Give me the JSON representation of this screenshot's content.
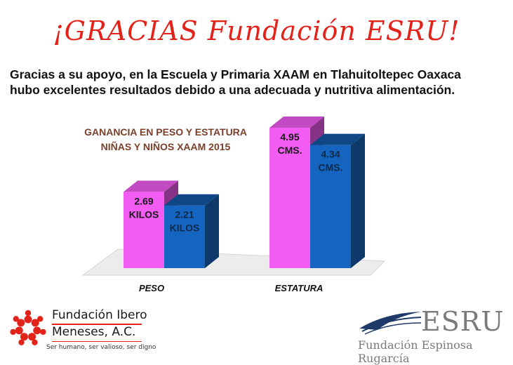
{
  "header": {
    "title": "¡GRACIAS Fundación ESRU!",
    "intro_line1": "Gracias a su apoyo, en la Escuela y Primaria XAAM en Tlahuitoltepec Oaxaca",
    "intro_line2": "hubo excelentes resultados debido a una adecuada y nutritiva alimentación."
  },
  "chart_data": {
    "type": "bar",
    "title_line1": "GANANCIA  EN PESO Y ESTATURA",
    "title_line2": "NIÑAS  Y NIÑOS  XAAM 2015",
    "categories": [
      "PESO",
      "ESTATURA"
    ],
    "series": [
      {
        "values": [
          2.69,
          4.95
        ],
        "labels": [
          "2.69\nKILOS",
          "4.95\nCMS."
        ],
        "color": "#f25cf2"
      },
      {
        "values": [
          2.21,
          4.34
        ],
        "labels": [
          "2.21\nKILOS",
          "4.34\nCMS."
        ],
        "color": "#1565c0"
      }
    ],
    "ylim": [
      0,
      5.5
    ],
    "grid": false,
    "style": "3d",
    "colors": {
      "title": "#7b3f2a",
      "floor": "#ececec"
    }
  },
  "logos": {
    "left_name_line1": "Fundación Ibero",
    "left_name_line2": "Meneses, A.C.",
    "left_tagline": "Ser humano, ser valioso, ser digno",
    "left_icon": "people-circle-icon",
    "left_color": "#e2231a",
    "right_word": "ESRU",
    "right_sub": "Fundación Espinosa Rugarcía",
    "right_icon": "open-book-icon",
    "right_color": "#1f3a68"
  }
}
